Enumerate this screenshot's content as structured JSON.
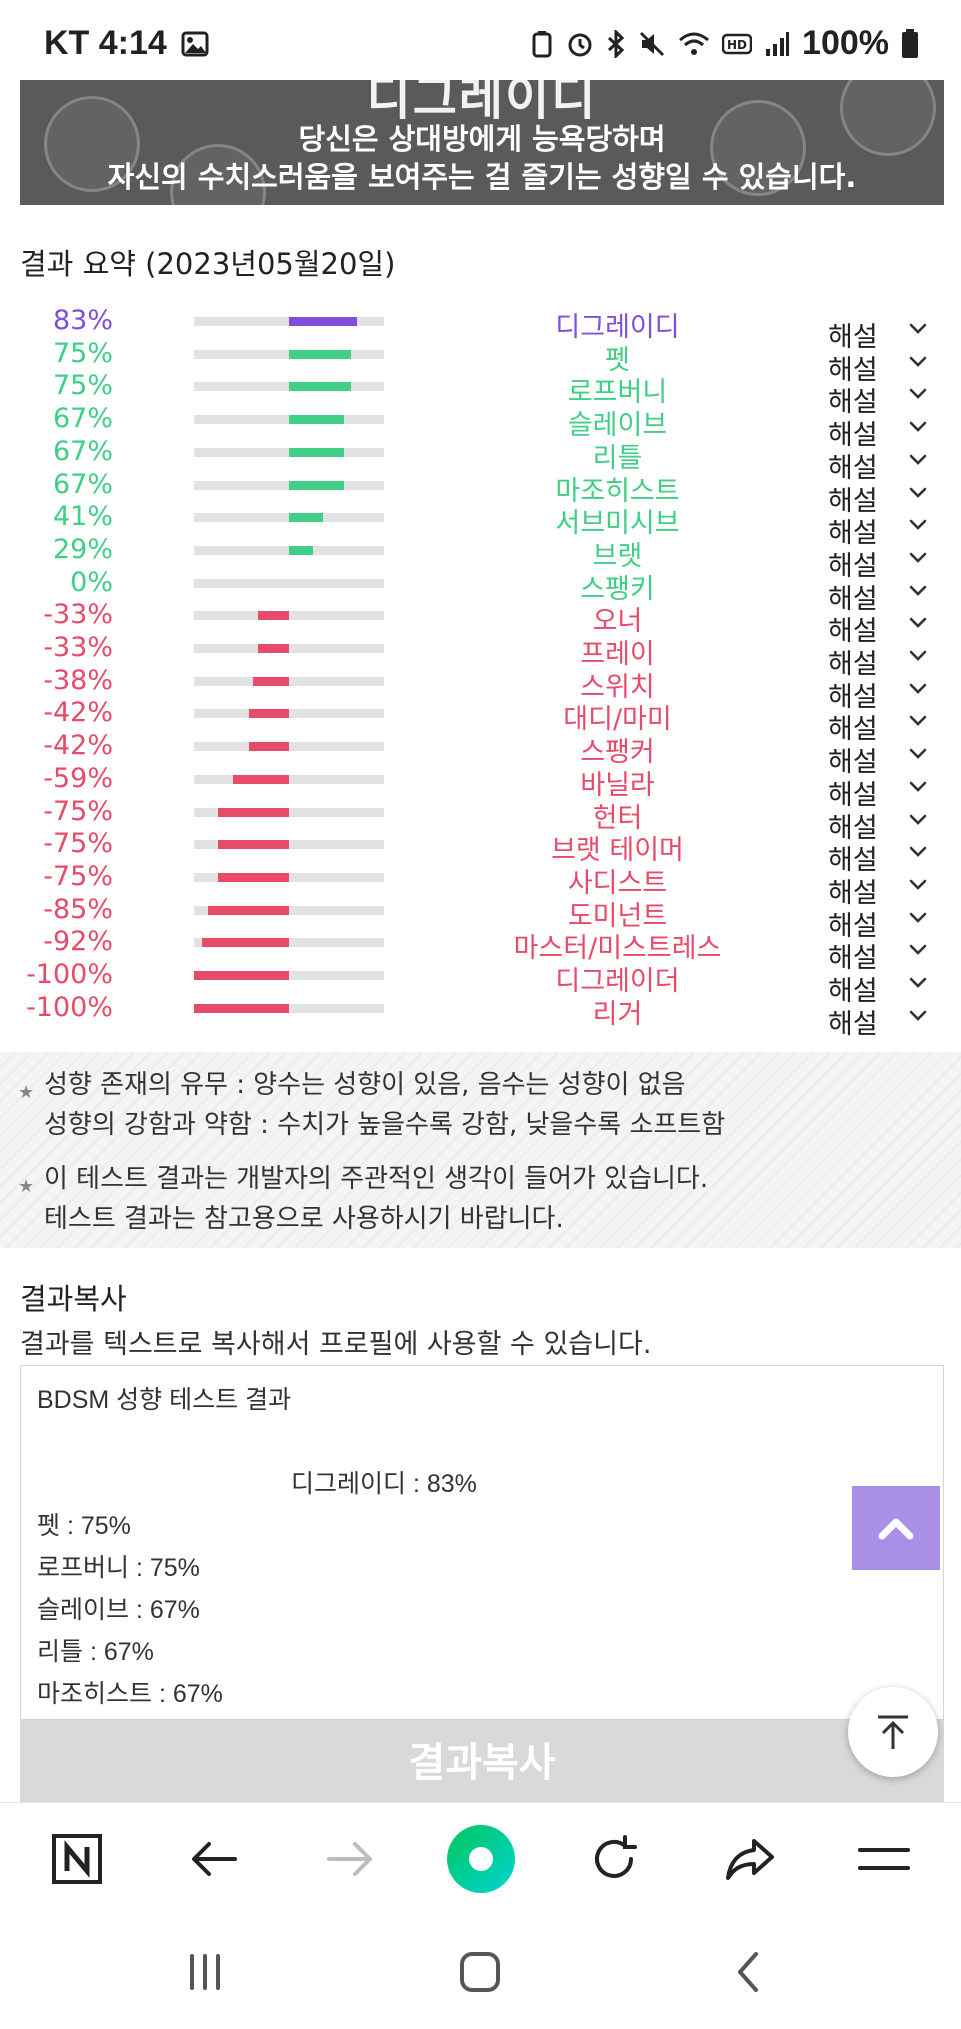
{
  "status_bar": {
    "carrier_time": "KT 4:14",
    "battery": "100%",
    "icons": [
      "gallery-icon",
      "recycle-icon",
      "alarm-icon",
      "bluetooth-icon",
      "mute-icon",
      "wifi-icon",
      "hd-icon",
      "signal-icon",
      "battery-icon"
    ]
  },
  "banner": {
    "title": "디그레이디",
    "line1": "당신은 상대방에게 능욕당하며",
    "line2": "자신의 수치스러움을 보여주는 걸 즐기는 성향일 수 있습니다."
  },
  "summary_title": "결과 요약 (2023년05월20일)",
  "colors": {
    "purple": "#7e4fdc",
    "green": "#3fcf86",
    "red": "#e84a6a"
  },
  "explain_label": "해설",
  "results": [
    {
      "pct": "83%",
      "value": 83,
      "name": "디그레이디",
      "color": "purple"
    },
    {
      "pct": "75%",
      "value": 75,
      "name": "펫",
      "color": "green"
    },
    {
      "pct": "75%",
      "value": 75,
      "name": "로프버니",
      "color": "green"
    },
    {
      "pct": "67%",
      "value": 67,
      "name": "슬레이브",
      "color": "green"
    },
    {
      "pct": "67%",
      "value": 67,
      "name": "리틀",
      "color": "green"
    },
    {
      "pct": "67%",
      "value": 67,
      "name": "마조히스트",
      "color": "green"
    },
    {
      "pct": "41%",
      "value": 41,
      "name": "서브미시브",
      "color": "green"
    },
    {
      "pct": "29%",
      "value": 29,
      "name": "브랫",
      "color": "green"
    },
    {
      "pct": "0%",
      "value": 0,
      "name": "스팽키",
      "color": "green"
    },
    {
      "pct": "-33%",
      "value": -33,
      "name": "오너",
      "color": "red"
    },
    {
      "pct": "-33%",
      "value": -33,
      "name": "프레이",
      "color": "red"
    },
    {
      "pct": "-38%",
      "value": -38,
      "name": "스위치",
      "color": "red"
    },
    {
      "pct": "-42%",
      "value": -42,
      "name": "대디/마미",
      "color": "red"
    },
    {
      "pct": "-42%",
      "value": -42,
      "name": "스팽커",
      "color": "red"
    },
    {
      "pct": "-59%",
      "value": -59,
      "name": "바닐라",
      "color": "red"
    },
    {
      "pct": "-75%",
      "value": -75,
      "name": "헌터",
      "color": "red"
    },
    {
      "pct": "-75%",
      "value": -75,
      "name": "브랫 테이머",
      "color": "red"
    },
    {
      "pct": "-75%",
      "value": -75,
      "name": "사디스트",
      "color": "red"
    },
    {
      "pct": "-85%",
      "value": -85,
      "name": "도미넌트",
      "color": "red"
    },
    {
      "pct": "-92%",
      "value": -92,
      "name": "마스터/미스트레스",
      "color": "red"
    },
    {
      "pct": "-100%",
      "value": -100,
      "name": "디그레이더",
      "color": "red"
    },
    {
      "pct": "-100%",
      "value": -100,
      "name": "리거",
      "color": "red"
    }
  ],
  "notes": {
    "line1": "성향 존재의 유무 : 양수는 성향이 있음, 음수는 성향이 없음",
    "line2": "성향의 강함과 약함 : 수치가 높을수록 강함, 낮을수록 소프트함",
    "line3": "이 테스트 결과는 개발자의 주관적인 생각이 들어가 있습니다.",
    "line4": "테스트 결과는 참고용으로 사용하시기 바랍니다."
  },
  "copy": {
    "title": "결과복사",
    "desc": "결과를 텍스트로 복사해서 프로필에 사용할 수 있습니다.",
    "header": "BDSM 성향 테스트 결과",
    "main_line": "디그레이디 : 83%",
    "lines": [
      "펫 : 75%",
      "로프버니 : 75%",
      "슬레이브 : 67%",
      "리틀 : 67%",
      "마조히스트 : 67%"
    ],
    "button_label": "결과복사"
  },
  "toolbar": {
    "items": [
      "naver-home-icon",
      "back-arrow-icon",
      "forward-arrow-icon",
      "naver-green-dot-icon",
      "reload-icon",
      "share-icon",
      "menu-icon"
    ]
  },
  "navbar": {
    "items": [
      "recent-apps-icon",
      "home-icon",
      "back-icon"
    ]
  }
}
